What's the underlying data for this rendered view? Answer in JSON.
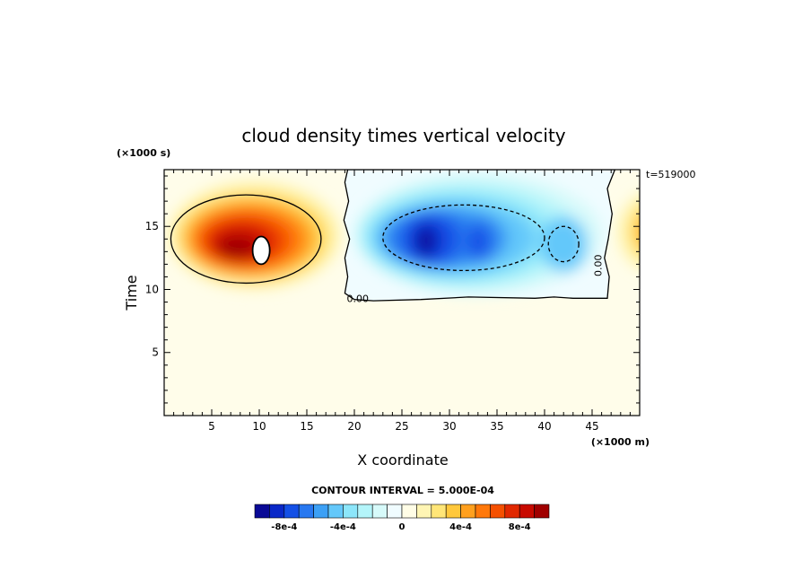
{
  "chart_data": {
    "type": "heatmap",
    "title": "cloud density times vertical velocity",
    "xlabel": "X coordinate",
    "ylabel": "Time",
    "x_unit": "(×1000 m)",
    "y_unit": "(×1000 s)",
    "time_stamp": "t=519000",
    "xlim": [
      0,
      50
    ],
    "ylim": [
      0,
      19.5
    ],
    "x_ticks": [
      5,
      10,
      15,
      20,
      25,
      30,
      35,
      40,
      45
    ],
    "y_ticks": [
      5,
      10,
      15
    ],
    "grid": false,
    "contour_label": "0.00",
    "contour_interval_text": "CONTOUR INTERVAL = 5.000E-04",
    "colorbar": {
      "levels": [
        -0.00095,
        -0.00085,
        -0.00075,
        -0.00065,
        -0.00055,
        -0.00045,
        -0.00035,
        -0.00025,
        -0.00015,
        -5e-05,
        5e-05,
        0.00015,
        0.00025,
        0.00035,
        0.00045,
        0.00055,
        0.00065,
        0.00075,
        0.00085,
        0.00095
      ],
      "colors": [
        "#0a0a96",
        "#0a28c8",
        "#1450e6",
        "#2878f0",
        "#3ca0f5",
        "#64c8fa",
        "#8ce6fa",
        "#b4f5fa",
        "#d7fafa",
        "#f0fcff",
        "#fffde6",
        "#fff5b4",
        "#ffe678",
        "#ffc83c",
        "#ffa01e",
        "#ff780a",
        "#f55000",
        "#e12800",
        "#c80a00",
        "#a00000"
      ],
      "tick_labels": [
        "-8e-4",
        "-4e-4",
        "0",
        "4e-4",
        "8e-4"
      ],
      "tick_values": [
        -0.0008,
        -0.0004,
        0,
        0.0004,
        0.0008
      ]
    }
  }
}
